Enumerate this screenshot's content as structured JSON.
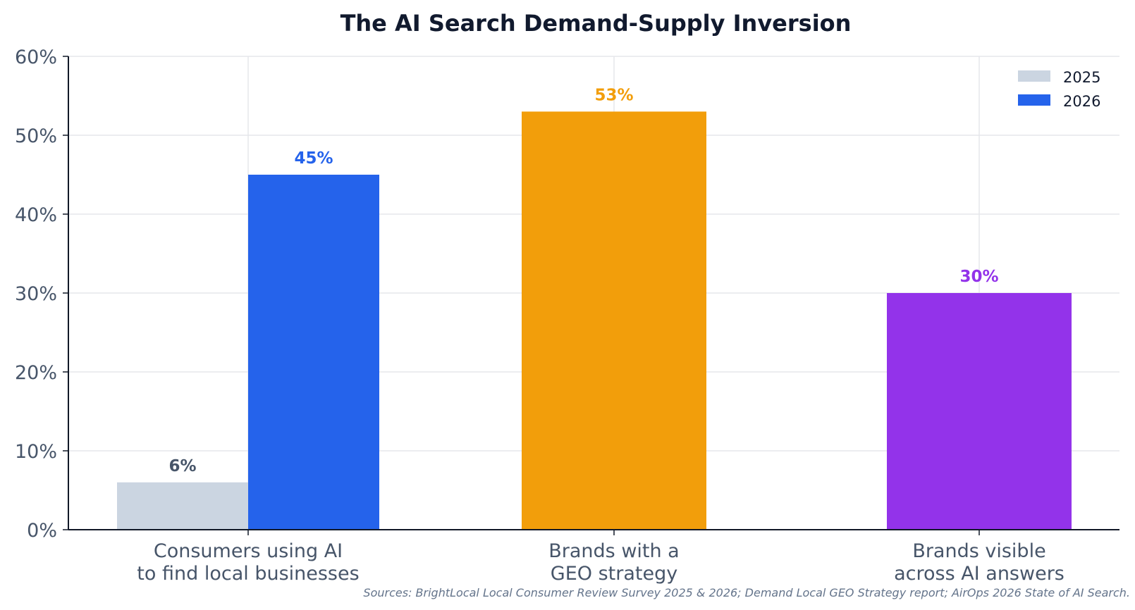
{
  "chart_data": {
    "type": "bar",
    "title": "The AI Search Demand-Supply Inversion",
    "xlabel": "",
    "ylabel": "",
    "ylim": [
      0,
      60
    ],
    "yticks": [
      0,
      10,
      20,
      30,
      40,
      50,
      60
    ],
    "ytick_labels": [
      "0%",
      "10%",
      "20%",
      "30%",
      "40%",
      "50%",
      "60%"
    ],
    "grid": true,
    "legend_position": "top-right",
    "categories": [
      [
        "Consumers using AI",
        "to find local businesses"
      ],
      [
        "Brands with a",
        "GEO strategy"
      ],
      [
        "Brands visible",
        "across AI answers"
      ]
    ],
    "bars": [
      {
        "category": 0,
        "slot": "left",
        "value": 6,
        "label": "6%",
        "color": "#cbd5e1",
        "label_color": "#475569"
      },
      {
        "category": 0,
        "slot": "right",
        "value": 45,
        "label": "45%",
        "color": "#2563eb",
        "label_color": "#2563eb"
      },
      {
        "category": 1,
        "slot": "center",
        "value": 53,
        "label": "53%",
        "color": "#f29e0b",
        "label_color": "#f29e0b"
      },
      {
        "category": 2,
        "slot": "center",
        "value": 30,
        "label": "30%",
        "color": "#9333ea",
        "label_color": "#9333ea"
      }
    ],
    "legend": [
      {
        "name": "2025",
        "color": "#cbd5e1"
      },
      {
        "name": "2026",
        "color": "#2563eb"
      }
    ],
    "source_note": "Sources: BrightLocal Local Consumer Review Survey 2025 & 2026; Demand Local GEO Strategy report; AirOps 2026 State of AI Search."
  }
}
